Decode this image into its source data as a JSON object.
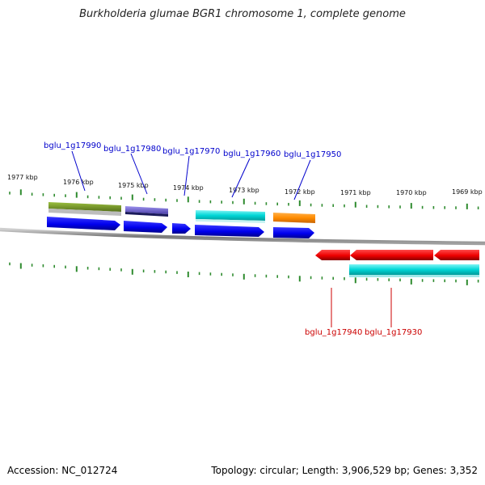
{
  "title": "Burkholderia glumae BGR1 chromosome 1, complete genome",
  "accession": "Accession: NC_012724",
  "summary": "Topology: circular; Length: 3,906,529 bp; Genes: 3,352",
  "ticks_kbp": [
    {
      "label": "1977 kbp"
    },
    {
      "label": "1976 kbp"
    },
    {
      "label": "1975 kbp"
    },
    {
      "label": "1974 kbp"
    },
    {
      "label": "1973 kbp"
    },
    {
      "label": "1972 kbp"
    },
    {
      "label": "1971 kbp"
    },
    {
      "label": "1970 kbp"
    },
    {
      "label": "1969 kbp"
    }
  ],
  "genes": [
    {
      "id": "bglu_1g17990",
      "strand": "forward",
      "color": "#0000cc"
    },
    {
      "id": "bglu_1g17980",
      "strand": "forward",
      "color": "#0000cc"
    },
    {
      "id": "bglu_1g17970",
      "strand": "forward",
      "color": "#0000cc"
    },
    {
      "id": "bglu_1g17960",
      "strand": "forward",
      "color": "#0000cc"
    },
    {
      "id": "bglu_1g17950",
      "strand": "forward",
      "color": "#0000cc"
    },
    {
      "id": "bglu_1g17940",
      "strand": "reverse",
      "color": "#cc0000"
    },
    {
      "id": "bglu_1g17930",
      "strand": "reverse",
      "color": "#cc0000"
    }
  ],
  "colors": {
    "tick": "#2e8b2e",
    "backbone": "#808080",
    "forward_cds": "#0000ee",
    "reverse_cds": "#ee0000",
    "feature_olive": "#6b8e23",
    "feature_slate": "#6a5acd",
    "feature_cyan": "#00cccc",
    "feature_orange": "#ff8c00"
  }
}
